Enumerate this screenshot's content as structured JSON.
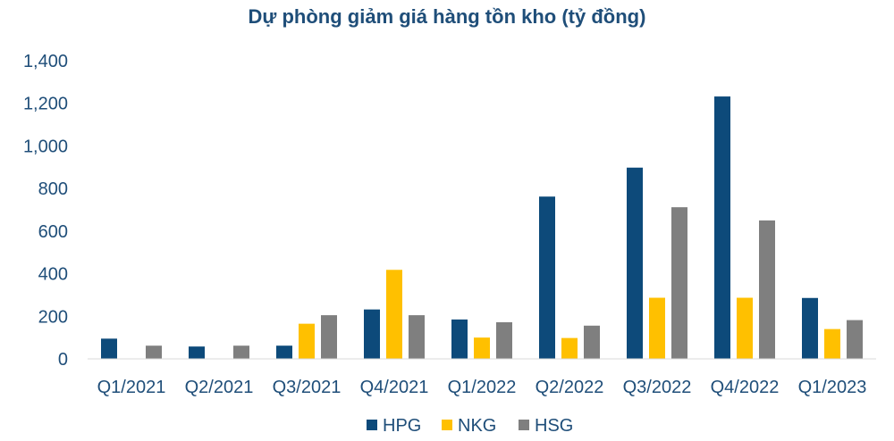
{
  "chart_data": {
    "type": "bar",
    "title": "Dự phòng giảm giá hàng tồn kho (tỷ đồng)",
    "xlabel": "",
    "ylabel": "",
    "categories": [
      "Q1/2021",
      "Q2/2021",
      "Q3/2021",
      "Q4/2021",
      "Q1/2022",
      "Q2/2022",
      "Q3/2022",
      "Q4/2022",
      "Q1/2023"
    ],
    "ylim": [
      0,
      1400
    ],
    "yticks": [
      0,
      200,
      400,
      600,
      800,
      1000,
      1200,
      1400
    ],
    "ytick_labels": [
      "0",
      "200",
      "400",
      "600",
      "800",
      "1,000",
      "1,200",
      "1,400"
    ],
    "grid": false,
    "legend_position": "bottom",
    "series": [
      {
        "name": "HPG",
        "color": "#0d4a7a",
        "values": [
          95,
          58,
          62,
          232,
          185,
          762,
          898,
          1232,
          286
        ]
      },
      {
        "name": "NKG",
        "color": "#ffc000",
        "values": [
          0,
          0,
          165,
          418,
          100,
          98,
          287,
          287,
          140
        ]
      },
      {
        "name": "HSG",
        "color": "#7f7f7f",
        "values": [
          62,
          62,
          205,
          205,
          172,
          156,
          712,
          650,
          182
        ]
      }
    ]
  }
}
